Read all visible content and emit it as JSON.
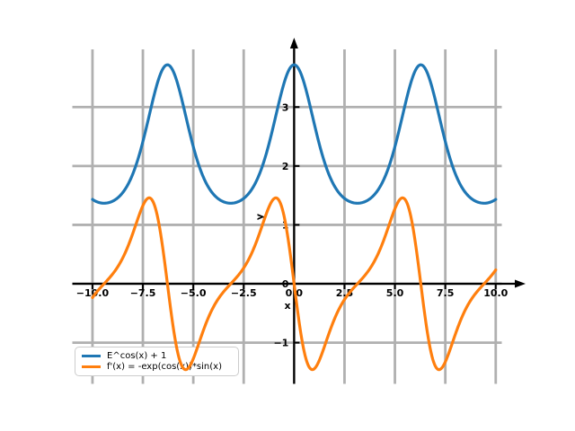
{
  "figure": {
    "background": "#ffffff"
  },
  "chart_data": {
    "type": "line",
    "title": "",
    "xlabel": "x",
    "ylabel": "y",
    "xlim": [
      -11.0,
      10.3
    ],
    "ylim": [
      -1.7,
      3.98
    ],
    "x_range": [
      -10,
      10
    ],
    "samples": 480,
    "grid": true,
    "grid_color": "#b0b0b0",
    "axis_color": "#000000",
    "tick_label_color": "#000000",
    "xticks": [
      -10.0,
      -7.5,
      -5.0,
      -2.5,
      0.0,
      2.5,
      5.0,
      7.5,
      10.0
    ],
    "xtick_labels": [
      "−10.0",
      "−7.5",
      "−5.0",
      "−2.5",
      "0.0",
      "2.5",
      "5.0",
      "7.5",
      "10.0"
    ],
    "yticks": [
      -1,
      0,
      1,
      2,
      3
    ],
    "ytick_labels": [
      "−1",
      "0",
      "1",
      "2",
      "3"
    ],
    "series": [
      {
        "name": "E^cos(x) + 1",
        "expr": "Math.exp(Math.cos(x))+1",
        "color": "#1f77b4",
        "linewidth": 3.2,
        "max_y": 3.72,
        "min_y": 1.37
      },
      {
        "name": "f'(x) = -exp(cos(x))*sin(x)",
        "expr": "-Math.exp(Math.cos(x))*Math.sin(x)",
        "color": "#ff7f0e",
        "linewidth": 3.2,
        "max_y": 1.45,
        "min_y": -1.45
      }
    ],
    "legend": {
      "position": "lower left"
    }
  }
}
